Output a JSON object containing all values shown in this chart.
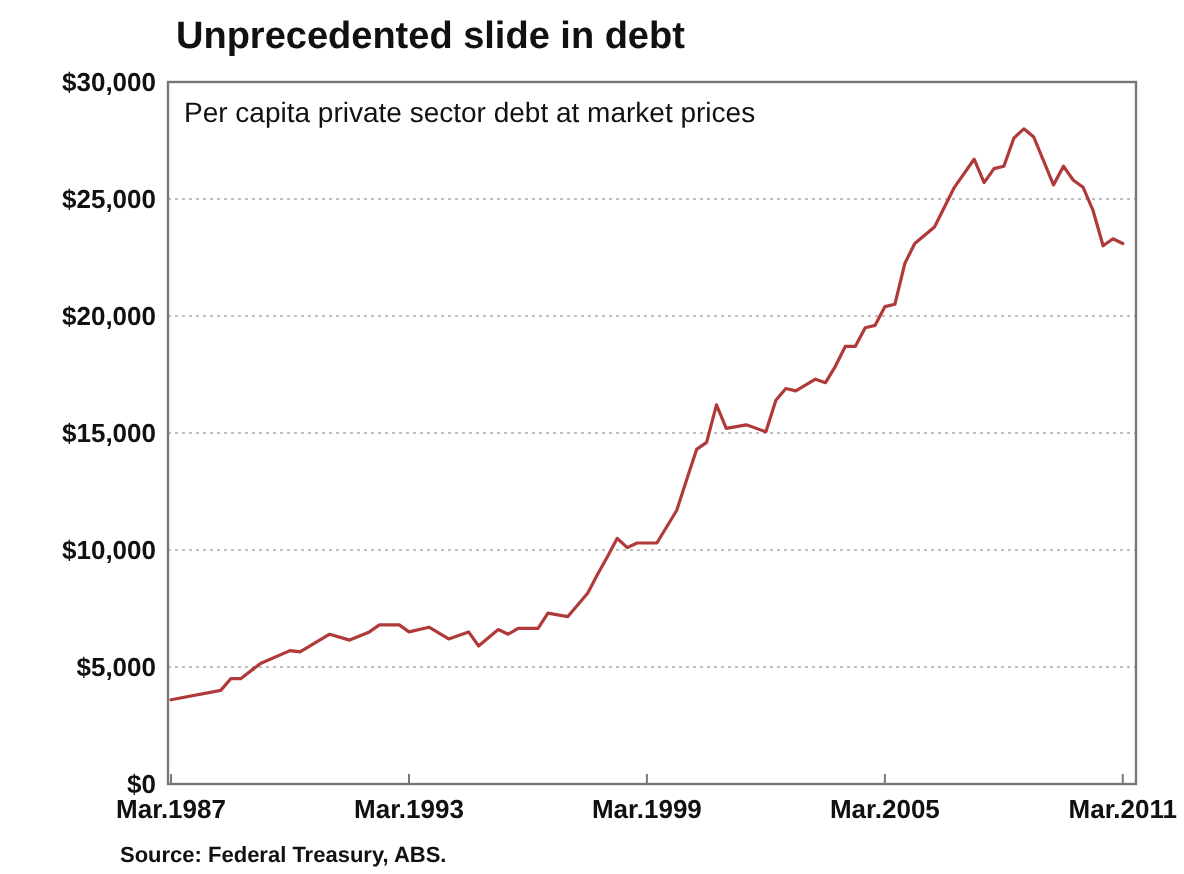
{
  "chart_data": {
    "type": "line",
    "title": "Unprecedented slide in debt",
    "subtitle": "Per capita private sector debt at market prices",
    "annotations": [
      "Source: Federal Treasury, ABS."
    ],
    "x": [
      "1987-03",
      "1988-06",
      "1988-09",
      "1988-12",
      "1989-06",
      "1990-03",
      "1990-06",
      "1991-03",
      "1991-09",
      "1992-03",
      "1992-06",
      "1992-12",
      "1993-03",
      "1993-09",
      "1994-03",
      "1994-09",
      "1994-12",
      "1995-06",
      "1995-09",
      "1995-12",
      "1996-06",
      "1996-09",
      "1997-03",
      "1997-09",
      "1997-12",
      "1998-03",
      "1998-06",
      "1998-09",
      "1998-12",
      "1999-06",
      "1999-12",
      "2000-03",
      "2000-06",
      "2000-09",
      "2000-12",
      "2001-03",
      "2001-09",
      "2002-03",
      "2002-06",
      "2002-09",
      "2002-12",
      "2003-06",
      "2003-09",
      "2003-12",
      "2004-03",
      "2004-06",
      "2004-09",
      "2004-12",
      "2005-03",
      "2005-06",
      "2005-09",
      "2005-12",
      "2006-06",
      "2006-12",
      "2007-06",
      "2007-09",
      "2007-12",
      "2008-03",
      "2008-06",
      "2008-09",
      "2008-12",
      "2009-06",
      "2009-09",
      "2009-12",
      "2010-03",
      "2010-06",
      "2010-09",
      "2010-12",
      "2011-03"
    ],
    "series": [
      {
        "color": "#b03a3a",
        "values": [
          3600,
          4000,
          4500,
          4500,
          5150,
          5700,
          5650,
          6400,
          6150,
          6500,
          6800,
          6800,
          6500,
          6700,
          6200,
          6500,
          5900,
          6600,
          6400,
          6650,
          6650,
          7300,
          7150,
          8150,
          8950,
          9700,
          10500,
          10100,
          10300,
          10300,
          11700,
          13000,
          14300,
          14600,
          16200,
          15200,
          15350,
          15050,
          16400,
          16900,
          16800,
          17300,
          17150,
          17850,
          18700,
          18700,
          19500,
          19600,
          20400,
          20500,
          22250,
          23100,
          23800,
          25500,
          26700,
          25700,
          26300,
          26400,
          27600,
          28000,
          27650,
          25600,
          26400,
          25800,
          25500,
          24500,
          23000,
          23300,
          23100
        ]
      }
    ],
    "xlim": [
      "1987-02",
      "2011-07"
    ],
    "xticks": [
      {
        "value": "1987-03",
        "label": "Mar.1987"
      },
      {
        "value": "1993-03",
        "label": "Mar.1993"
      },
      {
        "value": "1999-03",
        "label": "Mar.1999"
      },
      {
        "value": "2005-03",
        "label": "Mar.2005"
      },
      {
        "value": "2011-03",
        "label": "Mar.2011"
      }
    ],
    "ylim": [
      0,
      30000
    ],
    "yticks": [
      {
        "value": 0,
        "label": "$0"
      },
      {
        "value": 5000,
        "label": "$5,000"
      },
      {
        "value": 10000,
        "label": "$10,000"
      },
      {
        "value": 15000,
        "label": "$15,000"
      },
      {
        "value": 20000,
        "label": "$20,000"
      },
      {
        "value": 25000,
        "label": "$25,000"
      },
      {
        "value": 30000,
        "label": "$30,000"
      }
    ],
    "grid": "y",
    "marker": "none",
    "line_style": "solid"
  }
}
